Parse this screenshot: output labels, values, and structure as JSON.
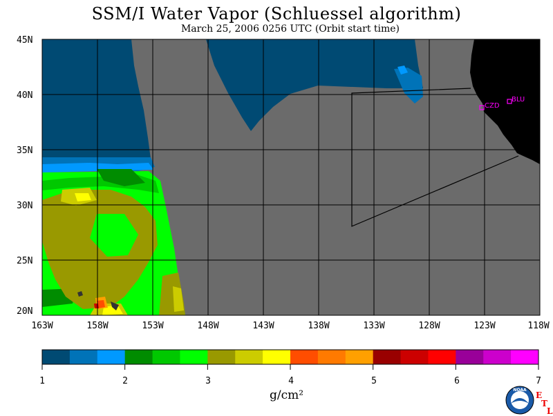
{
  "title": "SSM/I Water Vapor (Schluessel algorithm)",
  "subtitle": "March 25, 2006  0256 UTC  (Orbit start time)",
  "map": {
    "lat_labels": [
      "45N",
      "40N",
      "35N",
      "30N",
      "25N",
      "20N"
    ],
    "lon_labels": [
      "163W",
      "158W",
      "153W",
      "148W",
      "143W",
      "138W",
      "133W",
      "128W",
      "123W",
      "118W"
    ],
    "stations": [
      {
        "code": "CZD",
        "lon": -123.0,
        "lat": 38.6
      },
      {
        "code": "BLU",
        "lon": -120.8,
        "lat": 39.3
      }
    ],
    "colors": {
      "no_data": "#6b6b6b",
      "land": "#000000",
      "station": "#ff00ff"
    }
  },
  "colorbar": {
    "ticks": [
      "1",
      "2",
      "3",
      "4",
      "5",
      "6",
      "7"
    ],
    "unit": "g/cm²",
    "colors": [
      "#004a73",
      "#0073b8",
      "#0099ff",
      "#008c00",
      "#00c800",
      "#00ff00",
      "#999900",
      "#cccc00",
      "#ffff00",
      "#ff4d00",
      "#ff7a00",
      "#ffa000",
      "#990000",
      "#cc0000",
      "#ff0000",
      "#990099",
      "#cc00cc",
      "#ff00ff"
    ]
  },
  "logo": {
    "text": "NOAA",
    "etl": [
      "E",
      "T",
      "L"
    ]
  }
}
